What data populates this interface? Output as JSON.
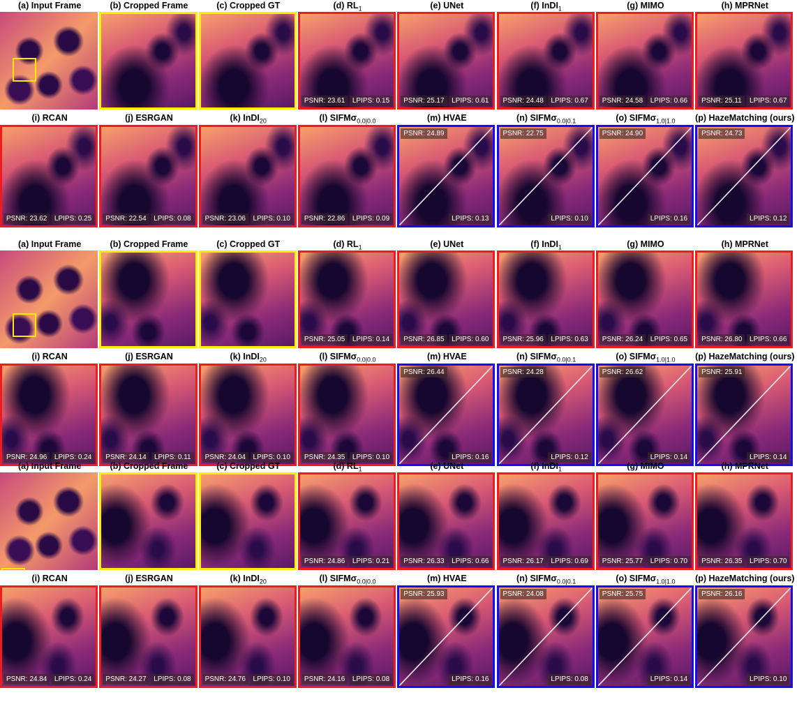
{
  "groups": [
    {
      "rows": [
        [
          {
            "label": "(a) Input Frame"
          },
          {
            "label": "(b) Cropped Frame",
            "border": "yellow"
          },
          {
            "label": "(c) Cropped GT",
            "border": "yellow"
          },
          {
            "label": "(d) RL",
            "sub": "1",
            "border": "red",
            "psnr": "PSNR: 23.61",
            "lpips": "LPIPS: 0.15"
          },
          {
            "label": "(e) UNet",
            "border": "red",
            "psnr": "PSNR: 25.17",
            "lpips": "LPIPS: 0.61"
          },
          {
            "label": "(f) InDI",
            "sub": "1",
            "border": "red",
            "psnr": "PSNR: 24.48",
            "lpips": "LPIPS: 0.67"
          },
          {
            "label": "(g) MIMO",
            "border": "red",
            "psnr": "PSNR: 24.58",
            "lpips": "LPIPS: 0.66"
          },
          {
            "label": "(h) MPRNet",
            "border": "red",
            "psnr": "PSNR: 25.11",
            "lpips": "LPIPS: 0.67"
          }
        ],
        [
          {
            "label": "(i) RCAN",
            "border": "red",
            "psnr": "PSNR: 23.62",
            "lpips": "LPIPS: 0.25"
          },
          {
            "label": "(j) ESRGAN",
            "border": "red",
            "psnr": "PSNR: 22.54",
            "lpips": "LPIPS: 0.08"
          },
          {
            "label": "(k) InDI",
            "sub": "20",
            "border": "red",
            "psnr": "PSNR: 23.06",
            "lpips": "LPIPS: 0.10"
          },
          {
            "label": "(l) SIFMσ",
            "sub": "0.0|0.0",
            "border": "red",
            "psnr": "PSNR: 22.86",
            "lpips": "LPIPS: 0.09"
          },
          {
            "label": "(m) HVAE",
            "border": "blue",
            "psnr": "PSNR: 24.89",
            "lpips": "LPIPS: 0.13"
          },
          {
            "label": "(n) SIFMσ",
            "sub": "0.0|0.1",
            "border": "blue",
            "psnr": "PSNR: 22.75",
            "lpips": "LPIPS: 0.10"
          },
          {
            "label": "(o) SIFMσ",
            "sub": "1.0|1.0",
            "border": "blue",
            "psnr": "PSNR: 24.90",
            "lpips": "LPIPS: 0.16"
          },
          {
            "label": "(p) HazeMatching (ours)",
            "border": "blue",
            "psnr": "PSNR: 24.73",
            "lpips": "LPIPS: 0.12"
          }
        ]
      ]
    },
    {
      "rows": [
        [
          {
            "label": "(a) Input Frame"
          },
          {
            "label": "(b) Cropped Frame",
            "border": "yellow"
          },
          {
            "label": "(c) Cropped GT",
            "border": "yellow"
          },
          {
            "label": "(d) RL",
            "sub": "1",
            "border": "red",
            "psnr": "PSNR: 25.05",
            "lpips": "LPIPS: 0.14"
          },
          {
            "label": "(e) UNet",
            "border": "red",
            "psnr": "PSNR: 26.85",
            "lpips": "LPIPS: 0.60"
          },
          {
            "label": "(f) InDI",
            "sub": "1",
            "border": "red",
            "psnr": "PSNR: 25.96",
            "lpips": "LPIPS: 0.63"
          },
          {
            "label": "(g) MIMO",
            "border": "red",
            "psnr": "PSNR: 26.24",
            "lpips": "LPIPS: 0.65"
          },
          {
            "label": "(h) MPRNet",
            "border": "red",
            "psnr": "PSNR: 26.80",
            "lpips": "LPIPS: 0.66"
          }
        ],
        [
          {
            "label": "(i) RCAN",
            "border": "red",
            "psnr": "PSNR: 24.96",
            "lpips": "LPIPS: 0.24"
          },
          {
            "label": "(j) ESRGAN",
            "border": "red",
            "psnr": "PSNR: 24.14",
            "lpips": "LPIPS: 0.11"
          },
          {
            "label": "(k) InDI",
            "sub": "20",
            "border": "red",
            "psnr": "PSNR: 24.04",
            "lpips": "LPIPS: 0.10"
          },
          {
            "label": "(l) SIFMσ",
            "sub": "0.0|0.0",
            "border": "red",
            "psnr": "PSNR: 24.35",
            "lpips": "LPIPS: 0.10"
          },
          {
            "label": "(m) HVAE",
            "border": "blue",
            "psnr": "PSNR: 26.44",
            "lpips": "LPIPS: 0.16"
          },
          {
            "label": "(n) SIFMσ",
            "sub": "0.0|0.1",
            "border": "blue",
            "psnr": "PSNR: 24.28",
            "lpips": "LPIPS: 0.12"
          },
          {
            "label": "(o) SIFMσ",
            "sub": "1.0|1.0",
            "border": "blue",
            "psnr": "PSNR: 26.62",
            "lpips": "LPIPS: 0.14"
          },
          {
            "label": "(p) HazeMatching (ours)",
            "border": "blue",
            "psnr": "PSNR: 25.91",
            "lpips": "LPIPS: 0.14"
          }
        ]
      ]
    },
    {
      "rows": [
        [
          {
            "label": "(a) Input Frame"
          },
          {
            "label": "(b) Cropped Frame",
            "border": "yellow"
          },
          {
            "label": "(c) Cropped GT",
            "border": "yellow"
          },
          {
            "label": "(d) RL",
            "sub": "1",
            "border": "red",
            "psnr": "PSNR: 24.86",
            "lpips": "LPIPS: 0.21"
          },
          {
            "label": "(e) UNet",
            "border": "red",
            "psnr": "PSNR: 26.33",
            "lpips": "LPIPS: 0.66"
          },
          {
            "label": "(f) InDI",
            "sub": "1",
            "border": "red",
            "psnr": "PSNR: 26.17",
            "lpips": "LPIPS: 0.69"
          },
          {
            "label": "(g) MIMO",
            "border": "red",
            "psnr": "PSNR: 25.77",
            "lpips": "LPIPS: 0.70"
          },
          {
            "label": "(h) MPRNet",
            "border": "red",
            "psnr": "PSNR: 26.35",
            "lpips": "LPIPS: 0.70"
          }
        ],
        [
          {
            "label": "(i) RCAN",
            "border": "red",
            "psnr": "PSNR: 24.84",
            "lpips": "LPIPS: 0.24"
          },
          {
            "label": "(j) ESRGAN",
            "border": "red",
            "psnr": "PSNR: 24.27",
            "lpips": "LPIPS: 0.08"
          },
          {
            "label": "(k) InDI",
            "sub": "20",
            "border": "red",
            "psnr": "PSNR: 24.76",
            "lpips": "LPIPS: 0.10"
          },
          {
            "label": "(l) SIFMσ",
            "sub": "0.0|0.0",
            "border": "red",
            "psnr": "PSNR: 24.16",
            "lpips": "LPIPS: 0.08"
          },
          {
            "label": "(m) HVAE",
            "border": "blue",
            "psnr": "PSNR: 25.93",
            "lpips": "LPIPS: 0.16"
          },
          {
            "label": "(n) SIFMσ",
            "sub": "0.0|0.1",
            "border": "blue",
            "psnr": "PSNR: 24.08",
            "lpips": "LPIPS: 0.08"
          },
          {
            "label": "(o) SIFMσ",
            "sub": "1.0|1.0",
            "border": "blue",
            "psnr": "PSNR: 25.75",
            "lpips": "LPIPS: 0.14"
          },
          {
            "label": "(p) HazeMatching (ours)",
            "border": "blue",
            "psnr": "PSNR: 26.16",
            "lpips": "LPIPS: 0.10"
          }
        ]
      ]
    }
  ]
}
